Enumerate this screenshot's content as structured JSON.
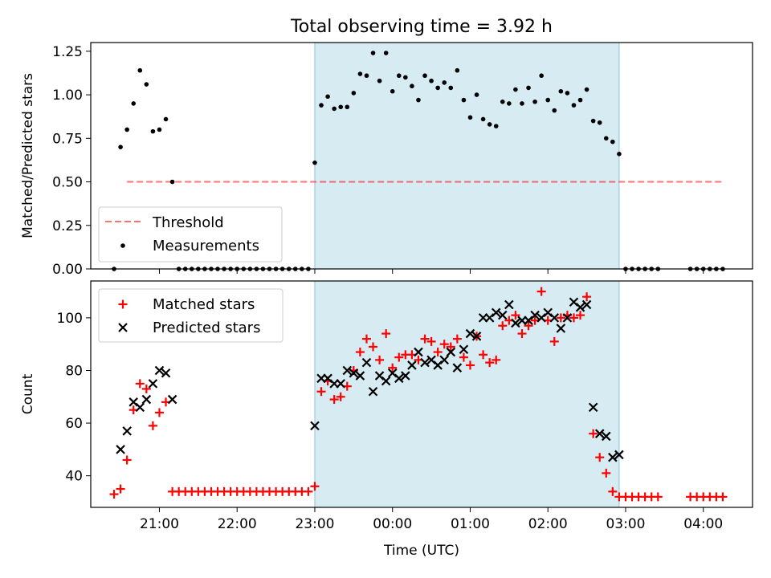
{
  "title": "Total observing time = 3.92 h",
  "xlabel": "Time (UTC)",
  "x_ticks": [
    "21:00",
    "22:00",
    "23:00",
    "00:00",
    "01:00",
    "02:00",
    "03:00",
    "04:00"
  ],
  "chart_data": [
    {
      "type": "scatter",
      "ylabel": "Matched/Predicted stars",
      "ylim": [
        0,
        1.3
      ],
      "y_ticks": [
        "0.00",
        "0.25",
        "0.50",
        "0.75",
        "1.00",
        "1.25"
      ],
      "shaded_region": {
        "from": "23:00",
        "to": "02:55",
        "color": "#add8e6"
      },
      "threshold": {
        "name": "Threshold",
        "value": 0.5,
        "x_range": [
          "20:35",
          "04:15"
        ],
        "color": "#ff0000"
      },
      "legend": {
        "placement": "lower-left",
        "entries": [
          "Threshold",
          "Measurements"
        ]
      },
      "series": [
        {
          "name": "Measurements",
          "marker": "dot",
          "color": "#000000",
          "points": [
            [
              "20:25",
              0.0
            ],
            [
              "20:30",
              0.7
            ],
            [
              "20:35",
              0.8
            ],
            [
              "20:40",
              0.95
            ],
            [
              "20:45",
              1.14
            ],
            [
              "20:50",
              1.06
            ],
            [
              "20:55",
              0.79
            ],
            [
              "21:00",
              0.8
            ],
            [
              "21:05",
              0.86
            ],
            [
              "21:10",
              0.5
            ],
            [
              "21:15",
              0.0
            ],
            [
              "21:20",
              0.0
            ],
            [
              "21:25",
              0.0
            ],
            [
              "21:30",
              0.0
            ],
            [
              "21:35",
              0.0
            ],
            [
              "21:40",
              0.0
            ],
            [
              "21:45",
              0.0
            ],
            [
              "21:50",
              0.0
            ],
            [
              "21:55",
              0.0
            ],
            [
              "22:00",
              0.0
            ],
            [
              "22:05",
              0.0
            ],
            [
              "22:10",
              0.0
            ],
            [
              "22:15",
              0.0
            ],
            [
              "22:20",
              0.0
            ],
            [
              "22:25",
              0.0
            ],
            [
              "22:30",
              0.0
            ],
            [
              "22:35",
              0.0
            ],
            [
              "22:40",
              0.0
            ],
            [
              "22:45",
              0.0
            ],
            [
              "22:50",
              0.0
            ],
            [
              "22:55",
              0.0
            ],
            [
              "23:00",
              0.61
            ],
            [
              "23:05",
              0.94
            ],
            [
              "23:10",
              0.99
            ],
            [
              "23:15",
              0.92
            ],
            [
              "23:20",
              0.93
            ],
            [
              "23:25",
              0.93
            ],
            [
              "23:30",
              1.01
            ],
            [
              "23:35",
              1.12
            ],
            [
              "23:40",
              1.11
            ],
            [
              "23:45",
              1.24
            ],
            [
              "23:50",
              1.08
            ],
            [
              "23:55",
              1.24
            ],
            [
              "00:00",
              1.02
            ],
            [
              "00:05",
              1.11
            ],
            [
              "00:10",
              1.1
            ],
            [
              "00:15",
              1.05
            ],
            [
              "00:20",
              0.97
            ],
            [
              "00:25",
              1.11
            ],
            [
              "00:30",
              1.08
            ],
            [
              "00:35",
              1.04
            ],
            [
              "00:40",
              1.07
            ],
            [
              "00:45",
              1.04
            ],
            [
              "00:50",
              1.14
            ],
            [
              "00:55",
              0.97
            ],
            [
              "01:00",
              0.87
            ],
            [
              "01:05",
              1.0
            ],
            [
              "01:10",
              0.86
            ],
            [
              "01:15",
              0.83
            ],
            [
              "01:20",
              0.82
            ],
            [
              "01:25",
              0.96
            ],
            [
              "01:30",
              0.95
            ],
            [
              "01:35",
              1.03
            ],
            [
              "01:40",
              0.95
            ],
            [
              "01:45",
              1.04
            ],
            [
              "01:50",
              0.96
            ],
            [
              "01:55",
              1.11
            ],
            [
              "02:00",
              0.97
            ],
            [
              "02:05",
              0.91
            ],
            [
              "02:10",
              1.02
            ],
            [
              "02:15",
              1.01
            ],
            [
              "02:20",
              0.94
            ],
            [
              "02:25",
              0.97
            ],
            [
              "02:30",
              1.03
            ],
            [
              "02:35",
              0.85
            ],
            [
              "02:40",
              0.84
            ],
            [
              "02:45",
              0.75
            ],
            [
              "02:50",
              0.73
            ],
            [
              "02:55",
              0.66
            ],
            [
              "03:00",
              0.0
            ],
            [
              "03:05",
              0.0
            ],
            [
              "03:10",
              0.0
            ],
            [
              "03:15",
              0.0
            ],
            [
              "03:20",
              0.0
            ],
            [
              "03:25",
              0.0
            ],
            [
              "03:50",
              0.0
            ],
            [
              "03:55",
              0.0
            ],
            [
              "04:00",
              0.0
            ],
            [
              "04:05",
              0.0
            ],
            [
              "04:10",
              0.0
            ],
            [
              "04:15",
              0.0
            ]
          ]
        }
      ]
    },
    {
      "type": "scatter",
      "ylabel": "Count",
      "ylim": [
        28,
        114
      ],
      "y_ticks": [
        "40",
        "60",
        "80",
        "100"
      ],
      "shaded_region": {
        "from": "23:00",
        "to": "02:55",
        "color": "#add8e6"
      },
      "legend": {
        "placement": "upper-left",
        "entries": [
          "Matched stars",
          "Predicted stars"
        ]
      },
      "series": [
        {
          "name": "Matched stars",
          "marker": "plus",
          "color": "#ff0000",
          "points": [
            [
              "20:25",
              33
            ],
            [
              "20:30",
              35
            ],
            [
              "20:35",
              46
            ],
            [
              "20:40",
              65
            ],
            [
              "20:45",
              75
            ],
            [
              "20:50",
              73
            ],
            [
              "20:55",
              59
            ],
            [
              "21:00",
              64
            ],
            [
              "21:05",
              68
            ],
            [
              "21:10",
              34
            ],
            [
              "21:15",
              34
            ],
            [
              "21:20",
              34
            ],
            [
              "21:25",
              34
            ],
            [
              "21:30",
              34
            ],
            [
              "21:35",
              34
            ],
            [
              "21:40",
              34
            ],
            [
              "21:45",
              34
            ],
            [
              "21:50",
              34
            ],
            [
              "21:55",
              34
            ],
            [
              "22:00",
              34
            ],
            [
              "22:05",
              34
            ],
            [
              "22:10",
              34
            ],
            [
              "22:15",
              34
            ],
            [
              "22:20",
              34
            ],
            [
              "22:25",
              34
            ],
            [
              "22:30",
              34
            ],
            [
              "22:35",
              34
            ],
            [
              "22:40",
              34
            ],
            [
              "22:45",
              34
            ],
            [
              "22:50",
              34
            ],
            [
              "22:55",
              34
            ],
            [
              "23:00",
              36
            ],
            [
              "23:05",
              72
            ],
            [
              "23:10",
              76
            ],
            [
              "23:15",
              69
            ],
            [
              "23:20",
              70
            ],
            [
              "23:25",
              74
            ],
            [
              "23:30",
              80
            ],
            [
              "23:35",
              87
            ],
            [
              "23:40",
              92
            ],
            [
              "23:45",
              89
            ],
            [
              "23:50",
              84
            ],
            [
              "23:55",
              94
            ],
            [
              "00:00",
              81
            ],
            [
              "00:05",
              85
            ],
            [
              "00:10",
              86
            ],
            [
              "00:15",
              86
            ],
            [
              "00:20",
              84
            ],
            [
              "00:25",
              92
            ],
            [
              "00:30",
              91
            ],
            [
              "00:35",
              87
            ],
            [
              "00:40",
              90
            ],
            [
              "00:45",
              89
            ],
            [
              "00:50",
              92
            ],
            [
              "00:55",
              85
            ],
            [
              "01:00",
              82
            ],
            [
              "01:05",
              93
            ],
            [
              "01:10",
              86
            ],
            [
              "01:15",
              83
            ],
            [
              "01:20",
              84
            ],
            [
              "01:25",
              97
            ],
            [
              "01:30",
              99
            ],
            [
              "01:35",
              101
            ],
            [
              "01:40",
              94
            ],
            [
              "01:45",
              97
            ],
            [
              "01:50",
              99
            ],
            [
              "01:55",
              110
            ],
            [
              "02:00",
              99
            ],
            [
              "02:05",
              91
            ],
            [
              "02:10",
              100
            ],
            [
              "02:15",
              101
            ],
            [
              "02:20",
              100
            ],
            [
              "02:25",
              101
            ],
            [
              "02:30",
              108
            ],
            [
              "02:35",
              56
            ],
            [
              "02:40",
              47
            ],
            [
              "02:45",
              41
            ],
            [
              "02:50",
              34
            ],
            [
              "02:55",
              32
            ],
            [
              "03:00",
              32
            ],
            [
              "03:05",
              32
            ],
            [
              "03:10",
              32
            ],
            [
              "03:15",
              32
            ],
            [
              "03:20",
              32
            ],
            [
              "03:25",
              32
            ],
            [
              "03:50",
              32
            ],
            [
              "03:55",
              32
            ],
            [
              "04:00",
              32
            ],
            [
              "04:05",
              32
            ],
            [
              "04:10",
              32
            ],
            [
              "04:15",
              32
            ]
          ]
        },
        {
          "name": "Predicted stars",
          "marker": "cross",
          "color": "#000000",
          "points": [
            [
              "20:30",
              50
            ],
            [
              "20:35",
              57
            ],
            [
              "20:40",
              68
            ],
            [
              "20:45",
              66
            ],
            [
              "20:50",
              69
            ],
            [
              "20:55",
              75
            ],
            [
              "21:00",
              80
            ],
            [
              "21:05",
              79
            ],
            [
              "21:10",
              69
            ],
            [
              "23:00",
              59
            ],
            [
              "23:05",
              77
            ],
            [
              "23:10",
              77
            ],
            [
              "23:15",
              75
            ],
            [
              "23:20",
              75
            ],
            [
              "23:25",
              80
            ],
            [
              "23:30",
              79
            ],
            [
              "23:35",
              78
            ],
            [
              "23:40",
              83
            ],
            [
              "23:45",
              72
            ],
            [
              "23:50",
              78
            ],
            [
              "23:55",
              76
            ],
            [
              "00:00",
              79
            ],
            [
              "00:05",
              77
            ],
            [
              "00:10",
              78
            ],
            [
              "00:15",
              82
            ],
            [
              "00:20",
              87
            ],
            [
              "00:25",
              83
            ],
            [
              "00:30",
              84
            ],
            [
              "00:35",
              82
            ],
            [
              "00:40",
              84
            ],
            [
              "00:45",
              87
            ],
            [
              "00:50",
              81
            ],
            [
              "00:55",
              88
            ],
            [
              "01:00",
              94
            ],
            [
              "01:05",
              93
            ],
            [
              "01:10",
              100
            ],
            [
              "01:15",
              100
            ],
            [
              "01:20",
              102
            ],
            [
              "01:25",
              101
            ],
            [
              "01:30",
              105
            ],
            [
              "01:35",
              98
            ],
            [
              "01:40",
              99
            ],
            [
              "01:45",
              99
            ],
            [
              "01:50",
              101
            ],
            [
              "01:55",
              100
            ],
            [
              "02:00",
              102
            ],
            [
              "02:05",
              100
            ],
            [
              "02:10",
              96
            ],
            [
              "02:15",
              100
            ],
            [
              "02:20",
              106
            ],
            [
              "02:25",
              104
            ],
            [
              "02:30",
              105
            ],
            [
              "02:35",
              66
            ],
            [
              "02:40",
              56
            ],
            [
              "02:45",
              55
            ],
            [
              "02:50",
              47
            ],
            [
              "02:55",
              48
            ]
          ]
        }
      ]
    }
  ]
}
